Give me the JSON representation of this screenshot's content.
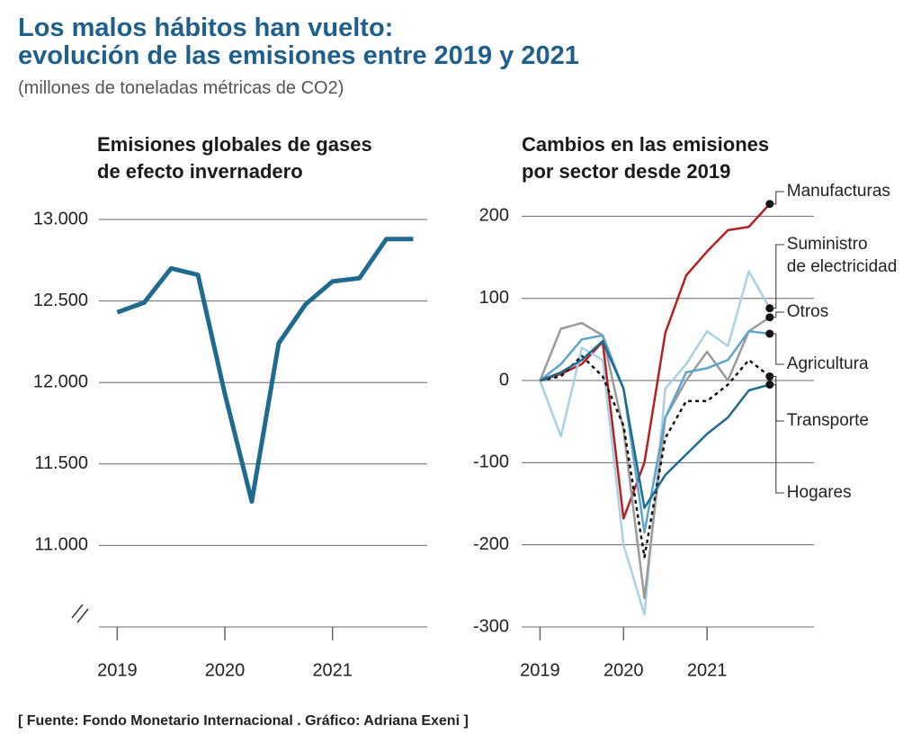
{
  "header": {
    "title": [
      "Los malos hábitos han vuelto:",
      "evolución de las emisiones entre 2019 y 2021"
    ],
    "subtitle": "(millones de toneladas métricas de CO2)"
  },
  "source": "[ Fuente: Fondo Monetario Internacional .  Gráfico: Adriana Exeni ]",
  "chart_data": [
    {
      "type": "line",
      "title": [
        "Emisiones globales de gases",
        "de efecto invernadero"
      ],
      "x": [
        2019,
        2019.25,
        2019.5,
        2019.75,
        2020,
        2020.25,
        2020.5,
        2020.75,
        2021,
        2021.25,
        2021.5,
        2021.75
      ],
      "values": [
        12430,
        12490,
        12700,
        12660,
        11930,
        11270,
        12240,
        12480,
        12620,
        12640,
        12880,
        12880
      ],
      "color": "#1f6b8f",
      "xlim": [
        2018.83,
        2021.88
      ],
      "xticks": [
        2019,
        2020,
        2021
      ],
      "ylim": [
        10500,
        13000
      ],
      "yticks": [
        {
          "value": 11000,
          "label": "11.000"
        },
        {
          "value": 11500,
          "label": "11.500"
        },
        {
          "value": 12000,
          "label": "12.000"
        },
        {
          "value": 12500,
          "label": "12.500"
        },
        {
          "value": 13000,
          "label": "13.000"
        }
      ],
      "grid": true,
      "axis_break": true
    },
    {
      "type": "line",
      "title": [
        "Cambios en las emisiones",
        "por sector desde 2019"
      ],
      "x": [
        2019,
        2019.25,
        2019.5,
        2019.75,
        2020,
        2020.25,
        2020.5,
        2020.75,
        2021,
        2021.25,
        2021.5,
        2021.75
      ],
      "series": [
        {
          "name": "Manufacturas",
          "color": "#b3201f",
          "values": [
            0,
            8,
            20,
            47,
            -168,
            -100,
            58,
            128,
            157,
            183,
            187,
            215
          ]
        },
        {
          "name": "Suministro de electricidad",
          "color": "#a9d1e3",
          "values": [
            0,
            -68,
            40,
            25,
            -200,
            -285,
            -10,
            20,
            60,
            42,
            133,
            88
          ]
        },
        {
          "name": "Otros",
          "color": "#9a9a9a",
          "values": [
            0,
            63,
            70,
            55,
            -60,
            -265,
            -45,
            0,
            35,
            0,
            60,
            77
          ]
        },
        {
          "name": "Agricultura",
          "color": "#5ea4cc",
          "values": [
            0,
            20,
            50,
            55,
            -10,
            -185,
            -45,
            10,
            15,
            25,
            60,
            57
          ]
        },
        {
          "name": "Transporte",
          "color": "#111111",
          "style": "dotted",
          "values": [
            0,
            5,
            30,
            5,
            -55,
            -215,
            -70,
            -25,
            -25,
            -5,
            25,
            5
          ]
        },
        {
          "name": "Hogares",
          "color": "#1f6b8f",
          "values": [
            0,
            10,
            25,
            48,
            -10,
            -155,
            -115,
            -90,
            -65,
            -45,
            -12,
            -5
          ]
        }
      ],
      "end_markers": true,
      "xlim": [
        2018.78,
        2022.28
      ],
      "xticks": [
        2019,
        2020,
        2021
      ],
      "ylim": [
        -300,
        230
      ],
      "yticks": [
        -300,
        -200,
        -100,
        0,
        100,
        200
      ],
      "grid": true
    }
  ]
}
